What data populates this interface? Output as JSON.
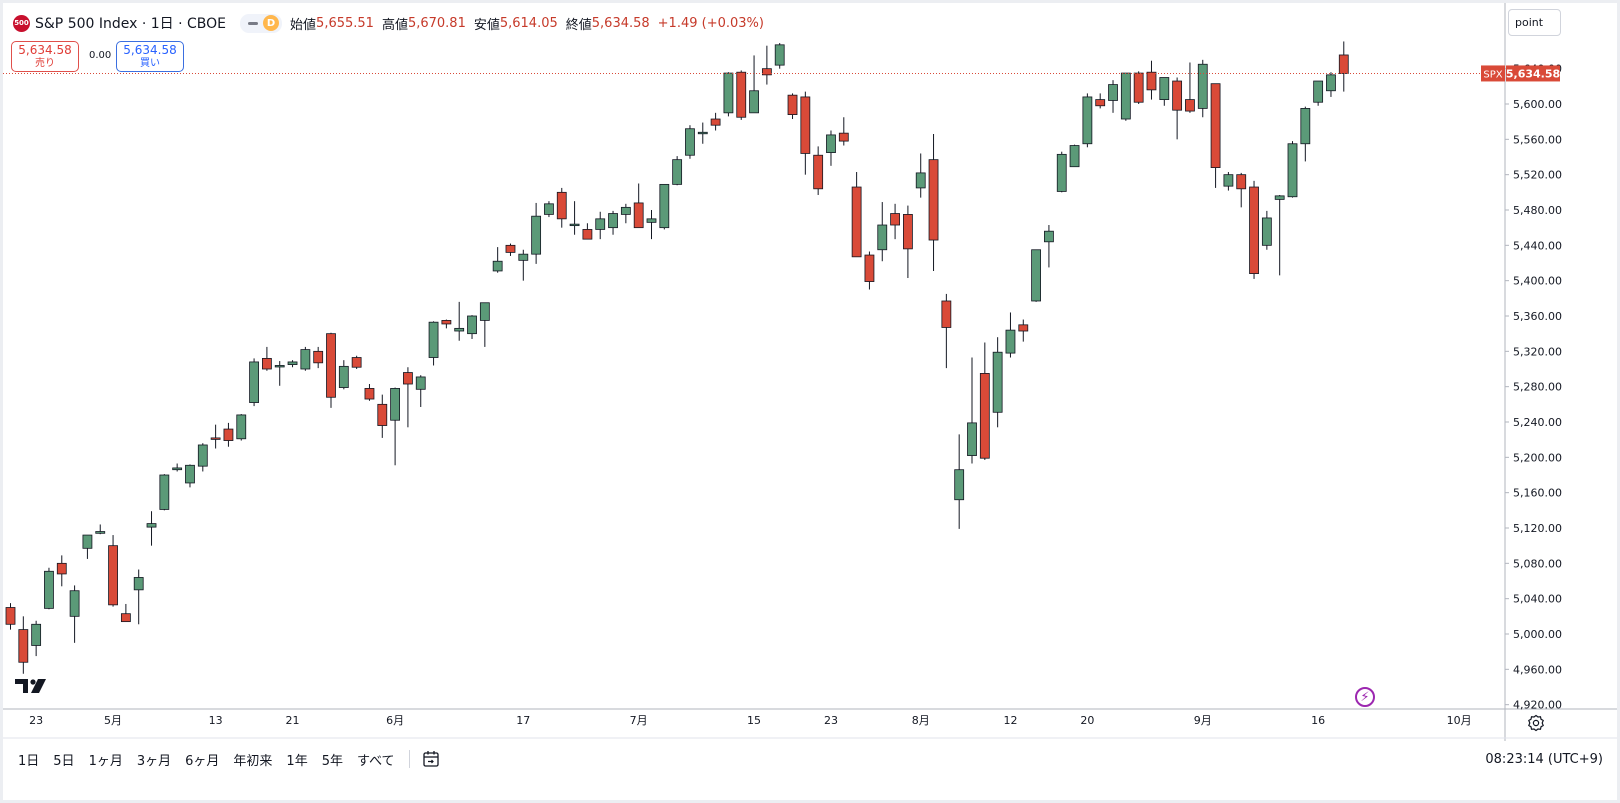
{
  "header": {
    "symbol_badge": "500",
    "title": "S&P 500 Index · 1日 · CBOE",
    "interval_badge": "D",
    "ohlc": {
      "open_label": "始値",
      "open": "5,655.51",
      "high_label": "高値",
      "high": "5,670.81",
      "low_label": "安値",
      "low": "5,614.05",
      "close_label": "終値",
      "close": "5,634.58",
      "change": "+1.49 (+0.03%)"
    }
  },
  "trade": {
    "sell_price": "5,634.58",
    "sell_label": "売り",
    "spread": "0.00",
    "buy_price": "5,634.58",
    "buy_label": "買い"
  },
  "price_scale": {
    "unit_label": "point",
    "symbol_tag": "SPX",
    "last_price": "5,634.58"
  },
  "bottom": {
    "ranges": [
      "1日",
      "5日",
      "1ヶ月",
      "3ヶ月",
      "6ヶ月",
      "年初来",
      "1年",
      "5年",
      "すべて"
    ],
    "clock": "08:23:14 (UTC+9)"
  },
  "colors": {
    "up": "#5b9a78",
    "down": "#d94a38",
    "wick": "#131722",
    "last_line": "#d94a38"
  },
  "chart_data": {
    "type": "candlestick",
    "title": "S&P 500 Index · 1日 · CBOE",
    "ylim": [
      4900,
      5680
    ],
    "y_ticks": [
      4920,
      4960,
      5000,
      5040,
      5080,
      5120,
      5160,
      5200,
      5240,
      5280,
      5320,
      5360,
      5400,
      5440,
      5480,
      5520,
      5560,
      5600,
      5640
    ],
    "y_tick_labels": [
      "4,920.00",
      "4,960.00",
      "5,000.00",
      "5,040.00",
      "5,080.00",
      "5,120.00",
      "5,160.00",
      "5,200.00",
      "5,240.00",
      "5,280.00",
      "5,320.00",
      "5,360.00",
      "5,400.00",
      "5,440.00",
      "5,480.00",
      "5,520.00",
      "5,560.00",
      "5,600.00",
      "5,640.00"
    ],
    "x_ticks": [
      {
        "label": "23",
        "index": 2
      },
      {
        "label": "5月",
        "index": 8
      },
      {
        "label": "13",
        "index": 16
      },
      {
        "label": "21",
        "index": 22
      },
      {
        "label": "6月",
        "index": 30
      },
      {
        "label": "17",
        "index": 40
      },
      {
        "label": "7月",
        "index": 49
      },
      {
        "label": "15",
        "index": 58
      },
      {
        "label": "23",
        "index": 64
      },
      {
        "label": "8月",
        "index": 71
      },
      {
        "label": "12",
        "index": 78
      },
      {
        "label": "20",
        "index": 84
      },
      {
        "label": "9月",
        "index": 93
      },
      {
        "label": "16",
        "index": 102
      },
      {
        "label": "10月",
        "index": 113
      }
    ],
    "last_price": 5634.58,
    "candles": [
      {
        "o": 5030,
        "h": 5035,
        "l": 5005,
        "c": 5011
      },
      {
        "o": 5005,
        "h": 5020,
        "l": 4955,
        "c": 4968
      },
      {
        "o": 4987,
        "h": 5015,
        "l": 4975,
        "c": 5011
      },
      {
        "o": 5029,
        "h": 5075,
        "l": 5028,
        "c": 5071
      },
      {
        "o": 5080,
        "h": 5089,
        "l": 5054,
        "c": 5068
      },
      {
        "o": 5020,
        "h": 5055,
        "l": 4990,
        "c": 5049
      },
      {
        "o": 5097,
        "h": 5110,
        "l": 5085,
        "c": 5112
      },
      {
        "o": 5114,
        "h": 5124,
        "l": 5113,
        "c": 5116
      },
      {
        "o": 5100,
        "h": 5112,
        "l": 5031,
        "c": 5033
      },
      {
        "o": 5023,
        "h": 5034,
        "l": 5018,
        "c": 5014
      },
      {
        "o": 5050,
        "h": 5073,
        "l": 5011,
        "c": 5064
      },
      {
        "o": 5121,
        "h": 5139,
        "l": 5100,
        "c": 5125
      },
      {
        "o": 5141,
        "h": 5181,
        "l": 5140,
        "c": 5180
      },
      {
        "o": 5186,
        "h": 5193,
        "l": 5184,
        "c": 5188
      },
      {
        "o": 5171,
        "h": 5192,
        "l": 5166,
        "c": 5191
      },
      {
        "o": 5190,
        "h": 5216,
        "l": 5184,
        "c": 5214
      },
      {
        "o": 5222,
        "h": 5237,
        "l": 5210,
        "c": 5221
      },
      {
        "o": 5232,
        "h": 5239,
        "l": 5212,
        "c": 5219
      },
      {
        "o": 5221,
        "h": 5249,
        "l": 5219,
        "c": 5248
      },
      {
        "o": 5262,
        "h": 5312,
        "l": 5258,
        "c": 5308
      },
      {
        "o": 5312,
        "h": 5325,
        "l": 5298,
        "c": 5300
      },
      {
        "o": 5303,
        "h": 5309,
        "l": 5281,
        "c": 5304
      },
      {
        "o": 5305,
        "h": 5310,
        "l": 5302,
        "c": 5308
      },
      {
        "o": 5300,
        "h": 5325,
        "l": 5298,
        "c": 5322
      },
      {
        "o": 5320,
        "h": 5325,
        "l": 5301,
        "c": 5307
      },
      {
        "o": 5340,
        "h": 5341,
        "l": 5256,
        "c": 5268
      },
      {
        "o": 5279,
        "h": 5310,
        "l": 5277,
        "c": 5303
      },
      {
        "o": 5313,
        "h": 5315,
        "l": 5300,
        "c": 5302
      },
      {
        "o": 5278,
        "h": 5283,
        "l": 5264,
        "c": 5266
      },
      {
        "o": 5260,
        "h": 5271,
        "l": 5222,
        "c": 5236
      },
      {
        "o": 5242,
        "h": 5279,
        "l": 5191,
        "c": 5278
      },
      {
        "o": 5296,
        "h": 5302,
        "l": 5234,
        "c": 5283
      },
      {
        "o": 5277,
        "h": 5293,
        "l": 5257,
        "c": 5291
      },
      {
        "o": 5313,
        "h": 5354,
        "l": 5304,
        "c": 5353
      },
      {
        "o": 5355,
        "h": 5356,
        "l": 5346,
        "c": 5351
      },
      {
        "o": 5343,
        "h": 5376,
        "l": 5332,
        "c": 5346
      },
      {
        "o": 5340,
        "h": 5361,
        "l": 5334,
        "c": 5360
      },
      {
        "o": 5355,
        "h": 5375,
        "l": 5325,
        "c": 5375
      },
      {
        "o": 5411,
        "h": 5438,
        "l": 5409,
        "c": 5422
      },
      {
        "o": 5440,
        "h": 5442,
        "l": 5428,
        "c": 5432
      },
      {
        "o": 5423,
        "h": 5435,
        "l": 5400,
        "c": 5430
      },
      {
        "o": 5430,
        "h": 5488,
        "l": 5419,
        "c": 5473
      },
      {
        "o": 5475,
        "h": 5490,
        "l": 5472,
        "c": 5487
      },
      {
        "o": 5500,
        "h": 5505,
        "l": 5460,
        "c": 5470
      },
      {
        "o": 5464,
        "h": 5490,
        "l": 5452,
        "c": 5464
      },
      {
        "o": 5458,
        "h": 5465,
        "l": 5447,
        "c": 5447
      },
      {
        "o": 5458,
        "h": 5478,
        "l": 5447,
        "c": 5470
      },
      {
        "o": 5460,
        "h": 5479,
        "l": 5452,
        "c": 5476
      },
      {
        "o": 5475,
        "h": 5487,
        "l": 5465,
        "c": 5483
      },
      {
        "o": 5488,
        "h": 5510,
        "l": 5460,
        "c": 5460
      },
      {
        "o": 5466,
        "h": 5480,
        "l": 5447,
        "c": 5470
      },
      {
        "o": 5460,
        "h": 5509,
        "l": 5458,
        "c": 5509
      },
      {
        "o": 5509,
        "h": 5541,
        "l": 5508,
        "c": 5537
      },
      {
        "o": 5542,
        "h": 5576,
        "l": 5538,
        "c": 5572
      },
      {
        "o": 5567,
        "h": 5579,
        "l": 5555,
        "c": 5568
      },
      {
        "o": 5583,
        "h": 5590,
        "l": 5570,
        "c": 5576
      },
      {
        "o": 5590,
        "h": 5636,
        "l": 5586,
        "c": 5635
      },
      {
        "o": 5636,
        "h": 5638,
        "l": 5582,
        "c": 5585
      },
      {
        "o": 5590,
        "h": 5655,
        "l": 5590,
        "c": 5615
      },
      {
        "o": 5640,
        "h": 5666,
        "l": 5622,
        "c": 5633
      },
      {
        "o": 5644,
        "h": 5669,
        "l": 5640,
        "c": 5667
      },
      {
        "o": 5610,
        "h": 5612,
        "l": 5583,
        "c": 5588
      },
      {
        "o": 5608,
        "h": 5614,
        "l": 5520,
        "c": 5544
      },
      {
        "o": 5542,
        "h": 5552,
        "l": 5497,
        "c": 5504
      },
      {
        "o": 5545,
        "h": 5570,
        "l": 5530,
        "c": 5565
      },
      {
        "o": 5567,
        "h": 5585,
        "l": 5553,
        "c": 5558
      },
      {
        "o": 5506,
        "h": 5523,
        "l": 5427,
        "c": 5427
      },
      {
        "o": 5429,
        "h": 5433,
        "l": 5390,
        "c": 5399
      },
      {
        "o": 5435,
        "h": 5489,
        "l": 5422,
        "c": 5463
      },
      {
        "o": 5476,
        "h": 5487,
        "l": 5447,
        "c": 5463
      },
      {
        "o": 5475,
        "h": 5485,
        "l": 5403,
        "c": 5436
      },
      {
        "o": 5505,
        "h": 5544,
        "l": 5494,
        "c": 5522
      },
      {
        "o": 5537,
        "h": 5566,
        "l": 5411,
        "c": 5446
      },
      {
        "o": 5377,
        "h": 5385,
        "l": 5301,
        "c": 5347
      },
      {
        "o": 5152,
        "h": 5226,
        "l": 5119,
        "c": 5186
      },
      {
        "o": 5202,
        "h": 5313,
        "l": 5193,
        "c": 5239
      },
      {
        "o": 5295,
        "h": 5330,
        "l": 5197,
        "c": 5199
      },
      {
        "o": 5251,
        "h": 5336,
        "l": 5234,
        "c": 5319
      },
      {
        "o": 5318,
        "h": 5364,
        "l": 5313,
        "c": 5344
      },
      {
        "o": 5350,
        "h": 5356,
        "l": 5331,
        "c": 5343
      },
      {
        "o": 5377,
        "h": 5434,
        "l": 5376,
        "c": 5435
      },
      {
        "o": 5444,
        "h": 5463,
        "l": 5415,
        "c": 5456
      },
      {
        "o": 5501,
        "h": 5546,
        "l": 5500,
        "c": 5543
      },
      {
        "o": 5529,
        "h": 5554,
        "l": 5530,
        "c": 5553
      },
      {
        "o": 5555,
        "h": 5612,
        "l": 5551,
        "c": 5608
      },
      {
        "o": 5605,
        "h": 5612,
        "l": 5595,
        "c": 5598
      },
      {
        "o": 5604,
        "h": 5627,
        "l": 5590,
        "c": 5622
      },
      {
        "o": 5583,
        "h": 5635,
        "l": 5581,
        "c": 5635
      },
      {
        "o": 5635,
        "h": 5637,
        "l": 5600,
        "c": 5602
      },
      {
        "o": 5636,
        "h": 5649,
        "l": 5605,
        "c": 5616
      },
      {
        "o": 5605,
        "h": 5627,
        "l": 5598,
        "c": 5630
      },
      {
        "o": 5626,
        "h": 5630,
        "l": 5560,
        "c": 5593
      },
      {
        "o": 5605,
        "h": 5647,
        "l": 5590,
        "c": 5592
      },
      {
        "o": 5595,
        "h": 5650,
        "l": 5585,
        "c": 5645
      },
      {
        "o": 5623,
        "h": 5623,
        "l": 5505,
        "c": 5528
      },
      {
        "o": 5507,
        "h": 5523,
        "l": 5502,
        "c": 5520
      },
      {
        "o": 5520,
        "h": 5522,
        "l": 5483,
        "c": 5504
      },
      {
        "o": 5506,
        "h": 5513,
        "l": 5402,
        "c": 5408
      },
      {
        "o": 5440,
        "h": 5479,
        "l": 5435,
        "c": 5471
      },
      {
        "o": 5492,
        "h": 5497,
        "l": 5406,
        "c": 5496
      },
      {
        "o": 5495,
        "h": 5558,
        "l": 5494,
        "c": 5555
      },
      {
        "o": 5555,
        "h": 5597,
        "l": 5535,
        "c": 5595
      },
      {
        "o": 5602,
        "h": 5626,
        "l": 5598,
        "c": 5626
      },
      {
        "o": 5615,
        "h": 5636,
        "l": 5608,
        "c": 5633
      },
      {
        "o": 5655.51,
        "h": 5670.81,
        "l": 5614.05,
        "c": 5634.58
      }
    ]
  }
}
